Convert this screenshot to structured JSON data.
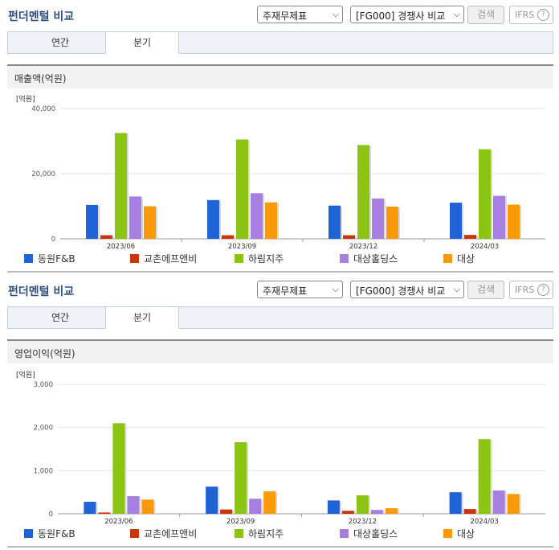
{
  "sections": [
    {
      "header": {
        "title": "펀더멘털 비교",
        "statement_select": "주재무제표",
        "peer_select": "[FG000] 경쟁사 비교",
        "search_label": "검색",
        "ifrs_label": "IFRS",
        "help_label": "?"
      },
      "tabs": [
        {
          "label": "연간",
          "active": false
        },
        {
          "label": "분기",
          "active": true
        }
      ],
      "chart_title": "매출액(억원)",
      "chart_data": {
        "type": "bar",
        "title": "매출액(억원)",
        "unit_label": "[억원]",
        "categories": [
          "2023/06",
          "2023/09",
          "2023/12",
          "2024/03"
        ],
        "ylim": [
          0,
          40000
        ],
        "yticks": [
          0,
          20000,
          40000
        ],
        "ytick_labels": [
          "0",
          "20,000",
          "40,000"
        ],
        "grid": true,
        "legend_position": "bottom",
        "series": [
          {
            "name": "동원F&B",
            "color": "#1f63d6",
            "values": [
              10400,
              11900,
              10200,
              11100
            ]
          },
          {
            "name": "교촌에프앤비",
            "color": "#c8360e",
            "values": [
              1100,
              1100,
              1100,
              1200
            ]
          },
          {
            "name": "하림지주",
            "color": "#8cc414",
            "values": [
              32500,
              30500,
              28800,
              27500
            ]
          },
          {
            "name": "대상홀딩스",
            "color": "#a77fe0",
            "values": [
              13000,
              14000,
              12400,
              13200
            ]
          },
          {
            "name": "대상",
            "color": "#fb9a08",
            "values": [
              10000,
              11200,
              9900,
              10500
            ]
          }
        ]
      }
    },
    {
      "header": {
        "title": "펀더멘털 비교",
        "statement_select": "주재무제표",
        "peer_select": "[FG000] 경쟁사 비교",
        "search_label": "검색",
        "ifrs_label": "IFRS",
        "help_label": "?"
      },
      "tabs": [
        {
          "label": "연간",
          "active": false
        },
        {
          "label": "분기",
          "active": true
        }
      ],
      "chart_title": "영업이익(억원)",
      "chart_data": {
        "type": "bar",
        "title": "영업이익(억원)",
        "unit_label": "[억원]",
        "categories": [
          "2023/06",
          "2023/09",
          "2023/12",
          "2024/03"
        ],
        "ylim": [
          0,
          3000
        ],
        "yticks": [
          0,
          1000,
          2000,
          3000
        ],
        "ytick_labels": [
          "0",
          "1,000",
          "2,000",
          "3,000"
        ],
        "grid": true,
        "legend_position": "bottom",
        "series": [
          {
            "name": "동원F&B",
            "color": "#1f63d6",
            "values": [
              280,
              630,
              310,
              500
            ]
          },
          {
            "name": "교촌에프앤비",
            "color": "#c8360e",
            "values": [
              30,
              100,
              70,
              110
            ]
          },
          {
            "name": "하림지주",
            "color": "#8cc414",
            "values": [
              2100,
              1660,
              430,
              1730
            ]
          },
          {
            "name": "대상홀딩스",
            "color": "#a77fe0",
            "values": [
              410,
              350,
              90,
              540
            ]
          },
          {
            "name": "대상",
            "color": "#fb9a08",
            "values": [
              330,
              520,
              130,
              460
            ]
          }
        ]
      }
    }
  ]
}
